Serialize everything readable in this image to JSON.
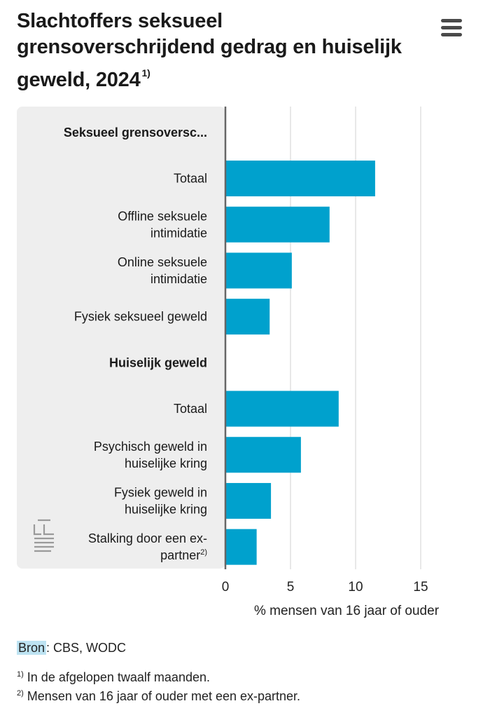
{
  "header": {
    "title": "Slachtoffers seksueel grensoverschrijdend gedrag en huiselijk geweld, 2024",
    "title_note": "1)",
    "menu_icon": "hamburger-menu-icon"
  },
  "chart_data": {
    "type": "bar",
    "orientation": "horizontal",
    "title": "Slachtoffers seksueel grensoverschrijdend gedrag en huiselijk geweld, 2024",
    "xlabel": "% mensen van 16 jaar of ouder",
    "xlim": [
      0,
      17
    ],
    "xticks": [
      0,
      5,
      10,
      15
    ],
    "grid": true,
    "bar_color": "#00a1cd",
    "panel_color": "#eeeeee",
    "rows": [
      {
        "label": "Seksueel grensoversc...",
        "group": true,
        "value": null
      },
      {
        "label": "Totaal",
        "group": false,
        "value": 11.5
      },
      {
        "label": "Offline seksuele intimidatie",
        "group": false,
        "value": 8.0
      },
      {
        "label": "Online seksuele intimidatie",
        "group": false,
        "value": 5.1
      },
      {
        "label": "Fysiek seksueel geweld",
        "group": false,
        "value": 3.4
      },
      {
        "label": "Huiselijk geweld",
        "group": true,
        "value": null
      },
      {
        "label": "Totaal",
        "group": false,
        "value": 8.7
      },
      {
        "label": "Psychisch geweld in huiselijke kring",
        "group": false,
        "value": 5.8
      },
      {
        "label": "Fysiek geweld in huiselijke kring",
        "group": false,
        "value": 3.5
      },
      {
        "label": "Stalking door een ex-partner",
        "label_note": "2)",
        "group": false,
        "value": 2.4
      }
    ]
  },
  "source": {
    "label": "Bron",
    "value": ": CBS, WODC"
  },
  "footnotes": [
    {
      "marker": "1)",
      "text": "In de afgelopen twaalf maanden."
    },
    {
      "marker": "2)",
      "text": "Mensen van 16 jaar of ouder met een ex-partner."
    }
  ],
  "logo": {
    "name": "cbs-logo-icon"
  }
}
